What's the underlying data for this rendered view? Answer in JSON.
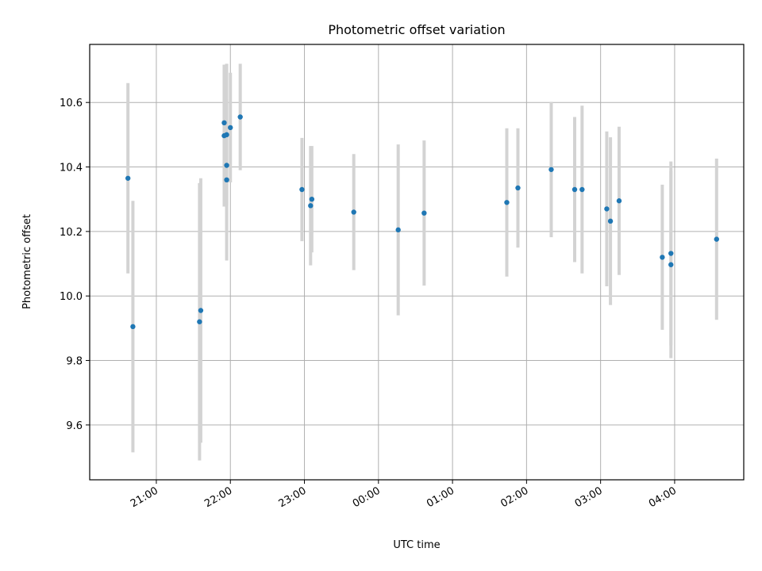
{
  "chart_data": {
    "type": "scatter",
    "title": "Photometric offset variation",
    "xlabel": "UTC time",
    "ylabel": "Photometric offset",
    "grid": true,
    "xlim": [
      "20:06",
      "04:56"
    ],
    "ylim": [
      9.43,
      10.78
    ],
    "x_ticks": [
      "21:00",
      "22:00",
      "23:00",
      "00:00",
      "01:00",
      "02:00",
      "03:00",
      "04:00"
    ],
    "y_ticks": [
      "9.6",
      "9.8",
      "10.0",
      "10.2",
      "10.4",
      "10.6"
    ],
    "colors": {
      "point": "#1f77b4",
      "errorbar": "#d3d3d3",
      "grid": "#b0b0b0"
    },
    "points": [
      {
        "x": "20:37",
        "y": 10.365,
        "err": 0.295
      },
      {
        "x": "20:41",
        "y": 9.905,
        "err": 0.39
      },
      {
        "x": "21:35",
        "y": 9.92,
        "err": 0.43
      },
      {
        "x": "21:36",
        "y": 9.955,
        "err": 0.41
      },
      {
        "x": "21:55",
        "y": 10.537,
        "err": 0.18
      },
      {
        "x": "21:55",
        "y": 10.497,
        "err": 0.22
      },
      {
        "x": "21:57",
        "y": 10.5,
        "err": 0.22
      },
      {
        "x": "21:57",
        "y": 10.405,
        "err": 0.2
      },
      {
        "x": "21:57",
        "y": 10.36,
        "err": 0.25
      },
      {
        "x": "22:00",
        "y": 10.522,
        "err": 0.17
      },
      {
        "x": "22:08",
        "y": 10.555,
        "err": 0.165
      },
      {
        "x": "22:58",
        "y": 10.33,
        "err": 0.16
      },
      {
        "x": "23:05",
        "y": 10.28,
        "err": 0.185
      },
      {
        "x": "23:06",
        "y": 10.3,
        "err": 0.165
      },
      {
        "x": "23:40",
        "y": 10.26,
        "err": 0.18
      },
      {
        "x": "00:16",
        "y": 10.205,
        "err": 0.265
      },
      {
        "x": "00:37",
        "y": 10.257,
        "err": 0.225
      },
      {
        "x": "01:44",
        "y": 10.29,
        "err": 0.23
      },
      {
        "x": "01:53",
        "y": 10.335,
        "err": 0.185
      },
      {
        "x": "02:20",
        "y": 10.392,
        "err": 0.21
      },
      {
        "x": "02:39",
        "y": 10.33,
        "err": 0.225
      },
      {
        "x": "02:45",
        "y": 10.33,
        "err": 0.26
      },
      {
        "x": "03:05",
        "y": 10.27,
        "err": 0.24
      },
      {
        "x": "03:08",
        "y": 10.232,
        "err": 0.26
      },
      {
        "x": "03:15",
        "y": 10.295,
        "err": 0.23
      },
      {
        "x": "03:50",
        "y": 10.12,
        "err": 0.225
      },
      {
        "x": "03:57",
        "y": 10.132,
        "err": 0.285
      },
      {
        "x": "03:57",
        "y": 10.097,
        "err": 0.29
      },
      {
        "x": "04:34",
        "y": 10.176,
        "err": 0.25
      }
    ]
  }
}
